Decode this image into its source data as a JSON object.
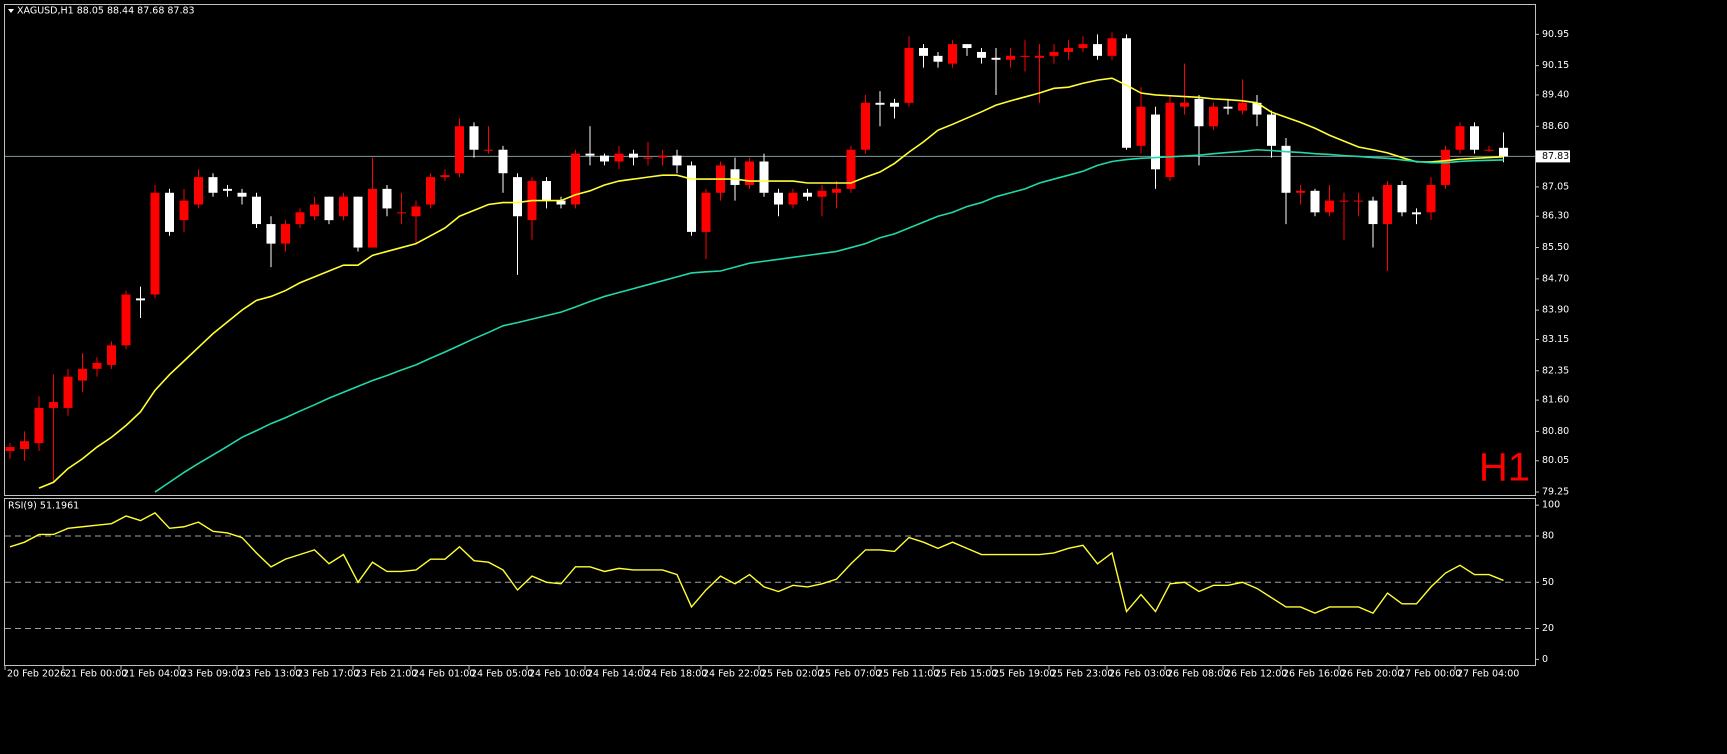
{
  "chart_data": [
    {
      "type": "candlestick",
      "title": "XAGUSD,H1  88.05 88.44 87.68 87.83",
      "annotation": "H1",
      "categories": [
        "20 Feb 2026",
        null,
        null,
        null,
        "21 Feb 00:00",
        null,
        null,
        null,
        "21 Feb 04:00",
        null,
        null,
        null,
        "23 Feb 09:00",
        null,
        null,
        null,
        "23 Feb 13:00",
        null,
        null,
        null,
        "23 Feb 17:00",
        null,
        null,
        null,
        "23 Feb 21:00",
        null,
        null,
        null,
        "24 Feb 01:00",
        null,
        null,
        null,
        "24 Feb 05:00",
        null,
        null,
        null,
        "24 Feb 10:00",
        null,
        null,
        null,
        "24 Feb 14:00",
        null,
        null,
        null,
        "24 Feb 18:00",
        null,
        null,
        null,
        "24 Feb 22:00",
        null,
        null,
        null,
        "25 Feb 02:00",
        null,
        null,
        null,
        "25 Feb 07:00",
        null,
        null,
        null,
        "25 Feb 11:00",
        null,
        null,
        null,
        "25 Feb 15:00",
        null,
        null,
        null,
        "25 Feb 19:00",
        null,
        null,
        null,
        "25 Feb 23:00",
        null,
        null,
        null,
        "26 Feb 03:00",
        null,
        null,
        null,
        "26 Feb 08:00",
        null,
        null,
        null,
        "26 Feb 12:00",
        null,
        null,
        null,
        "26 Feb 16:00",
        null,
        null,
        null,
        "26 Feb 20:00",
        null,
        null,
        null,
        "27 Feb 00:00",
        null,
        null,
        null,
        "27 Feb 04:00",
        null,
        null,
        null
      ],
      "open": [
        80.3,
        80.35,
        80.5,
        81.4,
        81.4,
        82.1,
        82.4,
        82.5,
        83.0,
        84.2,
        84.3,
        86.9,
        86.2,
        86.6,
        87.3,
        87.0,
        86.9,
        86.8,
        86.1,
        85.6,
        86.1,
        86.3,
        86.8,
        86.3,
        86.8,
        85.5,
        87.0,
        86.4,
        86.3,
        86.6,
        87.3,
        87.4,
        88.6,
        88.0,
        88.0,
        87.3,
        86.2,
        87.2,
        86.7,
        86.6,
        87.9,
        87.85,
        87.7,
        87.9,
        87.8,
        87.8,
        87.85,
        87.6,
        85.9,
        86.9,
        87.5,
        87.1,
        87.7,
        86.9,
        86.6,
        86.9,
        86.8,
        86.9,
        87.0,
        88.0,
        89.2,
        89.2,
        89.2,
        90.6,
        90.4,
        90.2,
        90.7,
        90.5,
        90.35,
        90.3,
        90.4,
        90.35,
        90.4,
        90.5,
        90.6,
        90.7,
        90.4,
        90.85,
        88.1,
        88.9,
        87.3,
        89.1,
        89.3,
        88.6,
        89.1,
        89.0,
        89.2,
        88.9,
        88.1,
        86.9,
        86.95,
        86.4,
        86.7,
        86.7,
        86.7,
        86.1,
        87.1,
        86.4,
        86.4,
        87.1,
        88.0,
        88.6,
        88.0,
        88.05
      ],
      "high": [
        80.5,
        80.8,
        81.7,
        82.25,
        82.4,
        82.8,
        82.7,
        83.1,
        84.4,
        84.5,
        87.1,
        87.0,
        87.0,
        87.5,
        87.4,
        87.1,
        87.0,
        86.9,
        86.3,
        86.2,
        86.5,
        86.8,
        86.8,
        86.9,
        86.8,
        87.8,
        87.1,
        86.9,
        86.7,
        87.4,
        87.5,
        88.8,
        88.7,
        88.6,
        88.1,
        87.4,
        87.3,
        87.3,
        86.8,
        88.0,
        88.6,
        87.9,
        88.1,
        88.0,
        88.2,
        88.0,
        88.0,
        87.7,
        87.0,
        87.7,
        87.8,
        87.8,
        87.9,
        87.0,
        87.0,
        87.0,
        87.1,
        87.2,
        88.1,
        89.4,
        89.5,
        89.3,
        90.9,
        90.7,
        90.5,
        90.8,
        90.7,
        90.6,
        90.6,
        90.6,
        90.8,
        90.7,
        90.7,
        90.8,
        90.9,
        90.95,
        91.0,
        90.95,
        89.6,
        89.1,
        89.4,
        90.2,
        89.4,
        89.2,
        89.3,
        89.8,
        89.4,
        89.0,
        88.3,
        87.1,
        87.0,
        87.1,
        86.9,
        86.9,
        86.8,
        87.2,
        87.2,
        86.5,
        87.3,
        88.1,
        88.7,
        88.7,
        88.1,
        88.44
      ],
      "low": [
        80.1,
        80.05,
        80.3,
        79.5,
        81.2,
        81.8,
        82.2,
        82.4,
        82.9,
        83.7,
        84.2,
        85.8,
        85.9,
        86.5,
        86.8,
        86.8,
        86.6,
        86.0,
        85.0,
        85.4,
        86.0,
        86.2,
        86.1,
        86.2,
        85.4,
        85.5,
        86.3,
        86.1,
        85.6,
        86.5,
        87.2,
        87.3,
        87.8,
        87.9,
        86.9,
        84.8,
        85.7,
        86.5,
        86.5,
        86.5,
        87.6,
        87.6,
        87.5,
        87.6,
        87.6,
        87.6,
        87.4,
        85.8,
        85.2,
        86.7,
        86.7,
        87.0,
        86.8,
        86.3,
        86.5,
        86.7,
        86.3,
        86.5,
        86.9,
        87.9,
        88.6,
        88.8,
        89.1,
        90.1,
        90.1,
        90.1,
        90.4,
        90.2,
        89.4,
        90.1,
        90.0,
        89.2,
        90.2,
        90.3,
        90.5,
        90.3,
        90.3,
        88.0,
        87.9,
        87.0,
        87.2,
        88.9,
        87.6,
        88.5,
        88.9,
        88.9,
        88.6,
        87.8,
        86.1,
        86.6,
        86.3,
        86.3,
        85.7,
        86.3,
        85.5,
        84.9,
        86.3,
        86.1,
        86.2,
        87.0,
        87.9,
        87.9,
        87.95,
        87.68
      ],
      "close": [
        80.4,
        80.55,
        81.4,
        81.55,
        82.2,
        82.4,
        82.55,
        83.0,
        84.3,
        84.15,
        86.9,
        85.9,
        86.7,
        87.3,
        86.9,
        86.95,
        86.8,
        86.1,
        85.6,
        86.1,
        86.4,
        86.6,
        86.2,
        86.8,
        85.5,
        87.0,
        86.5,
        86.4,
        86.55,
        87.3,
        87.35,
        88.6,
        88.0,
        88.0,
        87.4,
        86.3,
        87.2,
        86.7,
        86.6,
        87.9,
        87.85,
        87.7,
        87.9,
        87.8,
        87.8,
        87.85,
        87.6,
        85.9,
        86.9,
        87.6,
        87.1,
        87.7,
        86.9,
        86.6,
        86.9,
        86.8,
        86.95,
        87.0,
        88.0,
        89.2,
        89.15,
        89.1,
        90.6,
        90.4,
        90.25,
        90.7,
        90.6,
        90.35,
        90.3,
        90.4,
        90.4,
        90.4,
        90.5,
        90.6,
        90.7,
        90.4,
        90.85,
        88.05,
        89.1,
        87.5,
        89.2,
        89.2,
        88.6,
        89.1,
        89.05,
        89.2,
        88.9,
        88.1,
        86.9,
        86.95,
        86.4,
        86.7,
        86.7,
        86.7,
        86.1,
        87.1,
        86.4,
        86.35,
        87.1,
        88.0,
        88.6,
        88.0,
        88.0,
        87.83
      ],
      "up_color": "#ff0000",
      "down_color": "#ffffff",
      "moving_averages": [
        {
          "color": "#ffff33",
          "values": [
            null,
            null,
            79.35,
            79.5,
            79.85,
            80.1,
            80.4,
            80.65,
            80.95,
            81.3,
            81.85,
            82.25,
            82.6,
            82.95,
            83.3,
            83.6,
            83.9,
            84.15,
            84.25,
            84.4,
            84.6,
            84.75,
            84.9,
            85.05,
            85.05,
            85.3,
            85.4,
            85.5,
            85.6,
            85.8,
            86.0,
            86.3,
            86.45,
            86.6,
            86.65,
            86.65,
            86.7,
            86.7,
            86.7,
            86.85,
            86.95,
            87.1,
            87.2,
            87.25,
            87.3,
            87.35,
            87.35,
            87.25,
            87.25,
            87.25,
            87.25,
            87.2,
            87.2,
            87.2,
            87.2,
            87.15,
            87.15,
            87.15,
            87.15,
            87.3,
            87.43,
            87.65,
            87.94,
            88.2,
            88.5,
            88.65,
            88.81,
            88.97,
            89.14,
            89.25,
            89.35,
            89.45,
            89.57,
            89.6,
            89.7,
            89.78,
            89.83,
            89.65,
            89.45,
            89.4,
            89.38,
            89.36,
            89.34,
            89.3,
            89.28,
            89.25,
            89.2,
            88.96,
            88.83,
            88.7,
            88.55,
            88.37,
            88.22,
            88.07,
            88.0,
            87.92,
            87.8,
            87.69,
            87.69,
            87.72,
            87.76,
            87.78,
            87.8,
            87.82
          ]
        },
        {
          "color": "#20d8a8",
          "values": [
            null,
            null,
            null,
            null,
            null,
            null,
            null,
            null,
            null,
            null,
            79.25,
            79.5,
            79.75,
            79.98,
            80.2,
            80.42,
            80.65,
            80.82,
            81.0,
            81.15,
            81.32,
            81.48,
            81.65,
            81.8,
            81.95,
            82.1,
            82.23,
            82.37,
            82.5,
            82.67,
            82.83,
            83.0,
            83.17,
            83.33,
            83.5,
            83.58,
            83.67,
            83.76,
            83.85,
            83.98,
            84.12,
            84.25,
            84.35,
            84.45,
            84.55,
            84.65,
            84.75,
            84.85,
            84.88,
            84.9,
            85.0,
            85.1,
            85.15,
            85.2,
            85.25,
            85.3,
            85.35,
            85.4,
            85.5,
            85.6,
            85.75,
            85.85,
            86.0,
            86.15,
            86.3,
            86.4,
            86.55,
            86.65,
            86.8,
            86.9,
            87.0,
            87.15,
            87.25,
            87.35,
            87.45,
            87.6,
            87.7,
            87.75,
            87.78,
            87.8,
            87.82,
            87.84,
            87.86,
            87.9,
            87.93,
            87.96,
            88.0,
            87.98,
            87.95,
            87.93,
            87.9,
            87.88,
            87.85,
            87.83,
            87.8,
            87.78,
            87.74,
            87.7,
            87.67,
            87.67,
            87.7,
            87.72,
            87.73,
            87.74
          ]
        }
      ],
      "current_price": 87.83,
      "ylim": [
        79.2,
        91.7
      ],
      "yticks": [
        90.95,
        90.15,
        {
          "value": 89.4,
          "label": "89.40"
        },
        {
          "value": 88.6,
          "label": "88.60"
        },
        87.05,
        {
          "value": 86.3,
          "label": "86.30"
        },
        {
          "value": 85.5,
          "label": "85.50"
        },
        {
          "value": 84.7,
          "label": "84.70"
        },
        {
          "value": 83.9,
          "label": "83.90"
        },
        83.15,
        82.35,
        {
          "value": 81.6,
          "label": "81.60"
        },
        {
          "value": 80.8,
          "label": "80.80"
        },
        80.05,
        79.25
      ]
    },
    {
      "type": "line",
      "title": "RSI(9) 51.1961",
      "color": "#ffff33",
      "values": [
        73,
        76,
        81,
        81,
        85,
        86,
        87,
        88,
        93,
        90,
        95,
        85,
        86,
        89,
        83,
        82,
        79,
        69,
        60,
        65,
        68,
        71,
        62,
        68,
        50,
        63,
        57,
        57,
        58,
        65,
        65,
        73,
        64,
        63,
        58,
        45,
        54,
        50,
        49,
        60,
        60,
        57,
        59,
        58,
        58,
        58,
        55,
        34,
        45,
        54,
        49,
        55,
        47,
        44,
        48,
        47,
        49,
        52,
        62,
        71,
        71,
        70,
        79,
        76,
        72,
        76,
        72,
        68,
        68,
        68,
        68,
        68,
        69,
        72,
        74,
        62,
        69,
        31,
        42,
        31,
        49,
        50,
        44,
        48,
        48,
        50,
        46,
        40,
        34,
        34,
        30,
        34,
        34,
        34,
        30,
        43,
        36,
        36,
        47,
        56,
        61,
        55,
        55,
        51.1961
      ],
      "levels": [
        20,
        50,
        80
      ],
      "ylim": [
        -3,
        104
      ],
      "yticks": [
        0,
        20,
        50,
        80,
        100
      ]
    }
  ]
}
